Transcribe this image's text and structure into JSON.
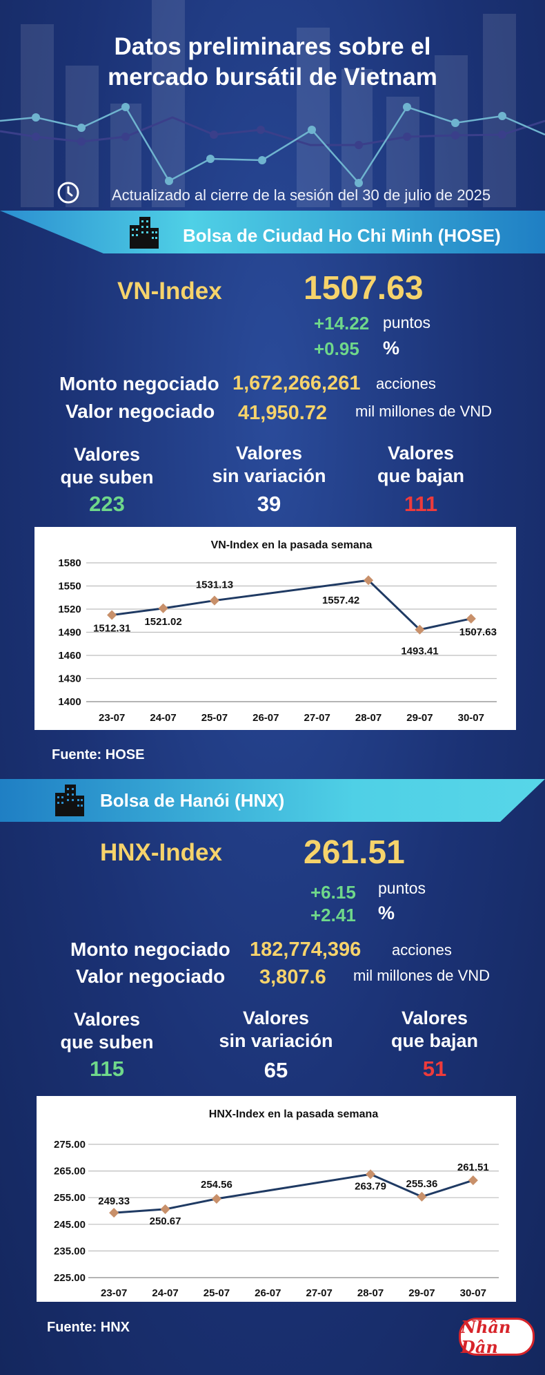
{
  "title_line1": "Datos preliminares sobre el",
  "title_line2": "mercado bursátil de Vietnam",
  "updated": "Actualizado al cierre de la sesión del 30 de julio de 2025",
  "hose": {
    "banner": "Bolsa de Ciudad Ho Chi Minh (HOSE)",
    "index_name": "VN-Index",
    "index_value": "1507.63",
    "change_points": "+14.22",
    "points_unit": "puntos",
    "change_pct": "+0.95",
    "pct_unit": "%",
    "volume_label": "Monto negociado",
    "volume_value": "1,672,266,261",
    "volume_unit": "acciones",
    "value_label": "Valor negociado",
    "value_value": "41,950.72",
    "value_unit": "mil millones de VND",
    "up_label_1": "Valores",
    "up_label_2": "que suben",
    "up_count": "223",
    "flat_label_1": "Valores",
    "flat_label_2": "sin variación",
    "flat_count": "39",
    "down_label_1": "Valores",
    "down_label_2": "que bajan",
    "down_count": "111",
    "source": "Fuente: HOSE"
  },
  "hnx": {
    "banner": "Bolsa de Hanói (HNX)",
    "index_name": "HNX-Index",
    "index_value": "261.51",
    "change_points": "+6.15",
    "points_unit": "puntos",
    "change_pct": "+2.41",
    "pct_unit": "%",
    "volume_label": "Monto negociado",
    "volume_value": "182,774,396",
    "volume_unit": "acciones",
    "value_label": "Valor negociado",
    "value_value": "3,807.6",
    "value_unit": "mil millones de VND",
    "up_label_1": "Valores",
    "up_label_2": "que suben",
    "up_count": "115",
    "flat_label_1": "Valores",
    "flat_label_2": "sin variación",
    "flat_count": "65",
    "down_label_1": "Valores",
    "down_label_2": "que bajan",
    "down_count": "51",
    "source": "Fuente:  HNX"
  },
  "logo_text": "Nhân Dân",
  "colors": {
    "background": "#1b3275",
    "accent_yellow": "#f6d36b",
    "up_green": "#6fd88a",
    "down_red": "#ee3b3b",
    "banner_cyan": "#4fd0e6",
    "line": "#1f3a63",
    "marker": "#c8906a"
  },
  "icons": {
    "clock": "clock-icon",
    "building": "building-icon"
  },
  "chart_data": [
    {
      "type": "line",
      "title": "VN-Index en la pasada semana",
      "categories": [
        "23-07",
        "24-07",
        "25-07",
        "26-07",
        "27-07",
        "28-07",
        "29-07",
        "30-07"
      ],
      "points": [
        {
          "x": "23-07",
          "y": 1512.31,
          "label": "1512.31"
        },
        {
          "x": "24-07",
          "y": 1521.02,
          "label": "1521.02"
        },
        {
          "x": "25-07",
          "y": 1531.13,
          "label": "1531.13"
        },
        {
          "x": "28-07",
          "y": 1557.42,
          "label": "1557.42"
        },
        {
          "x": "29-07",
          "y": 1493.41,
          "label": "1493.41"
        },
        {
          "x": "30-07",
          "y": 1507.63,
          "label": "1507.63"
        }
      ],
      "yticks": [
        "1580",
        "1550",
        "1520",
        "1490",
        "1460",
        "1430",
        "1400"
      ],
      "ylim": [
        1400,
        1580
      ],
      "grid": true
    },
    {
      "type": "line",
      "title": "HNX-Index en la pasada semana",
      "categories": [
        "23-07",
        "24-07",
        "25-07",
        "26-07",
        "27-07",
        "28-07",
        "29-07",
        "30-07"
      ],
      "points": [
        {
          "x": "23-07",
          "y": 249.33,
          "label": "249.33"
        },
        {
          "x": "24-07",
          "y": 250.67,
          "label": "250.67"
        },
        {
          "x": "25-07",
          "y": 254.56,
          "label": "254.56"
        },
        {
          "x": "28-07",
          "y": 263.79,
          "label": "263.79"
        },
        {
          "x": "29-07",
          "y": 255.36,
          "label": "255.36"
        },
        {
          "x": "30-07",
          "y": 261.51,
          "label": "261.51"
        }
      ],
      "yticks": [
        "275.00",
        "265.00",
        "255.00",
        "245.00",
        "235.00",
        "225.00"
      ],
      "ylim": [
        225,
        275
      ],
      "grid": true
    }
  ]
}
